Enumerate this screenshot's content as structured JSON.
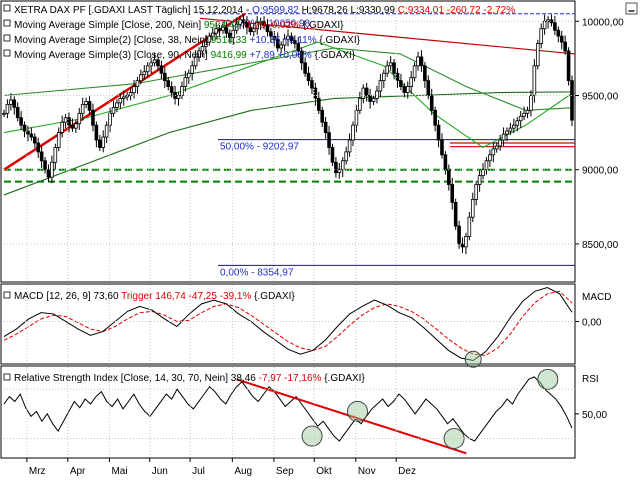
{
  "chart_data": [
    {
      "panel": "price",
      "type": "candlestick",
      "legend": [
        {
          "text_parts": [
            {
              "t": "XETRA DAX PF [.GDAXI LAST Täglich] 15.12.2014 - ",
              "c": "#000000"
            },
            {
              "t": "O:9599,82",
              "c": "#1f2fc8"
            },
            {
              "t": " H:9678,26 L:9330,99 ",
              "c": "#000000"
            },
            {
              "t": "C:9334,01 -260,72 -2,72%",
              "c": "#e00000"
            }
          ]
        },
        {
          "text_parts": [
            {
              "t": "Moving Average Simple [Close, 200, Nein] ",
              "c": "#000000"
            },
            {
              "t": "9524,47",
              "c": "#008000"
            },
            {
              "t": " -1,79 -0,02%",
              "c": "#e00000"
            },
            {
              "t": " {.GDAXI}",
              "c": "#000000"
            }
          ]
        },
        {
          "text_parts": [
            {
              "t": "Moving Average Simple(2) [Close, 38, Nein] ",
              "c": "#000000"
            },
            {
              "t": "9514,33",
              "c": "#008000"
            },
            {
              "t": " +10,36 +0,11%",
              "c": "#1f2fc8"
            },
            {
              "t": " {.GDAXI}",
              "c": "#000000"
            }
          ]
        },
        {
          "text_parts": [
            {
              "t": "Moving Average Simple(3) [Close, 90, Nein] ",
              "c": "#000000"
            },
            {
              "t": "9416,99",
              "c": "#008000"
            },
            {
              "t": " +7,89 +0,08%",
              "c": "#1f2fc8"
            },
            {
              "t": " {.GDAXI}",
              "c": "#000000"
            }
          ]
        }
      ],
      "y_ticks": [
        "10000,00",
        "9500,00",
        "9000,00",
        "8500,00"
      ],
      "y_tick_values": [
        10000,
        9500,
        9000,
        8500
      ],
      "ylim": [
        8250,
        10130
      ],
      "fib_labels": [
        {
          "text": "100,00% - 10050,98",
          "value": 10050.98
        },
        {
          "text": "50,00% - 9202,97",
          "value": 9202.97
        },
        {
          "text": "0,00% - 8354,97",
          "value": 8354.97
        }
      ],
      "support_levels": [
        9000,
        8920
      ],
      "close_series": [
        9380,
        9440,
        9470,
        9420,
        9350,
        9300,
        9260,
        9240,
        9220,
        9180,
        9120,
        9060,
        9000,
        8950,
        9050,
        9150,
        9250,
        9320,
        9350,
        9300,
        9280,
        9310,
        9380,
        9440,
        9460,
        9400,
        9300,
        9200,
        9150,
        9220,
        9300,
        9380,
        9420,
        9450,
        9480,
        9490,
        9500,
        9520,
        9560,
        9600,
        9640,
        9660,
        9700,
        9720,
        9740,
        9700,
        9650,
        9600,
        9560,
        9520,
        9480,
        9500,
        9560,
        9620,
        9650,
        9700,
        9760,
        9800,
        9830,
        9860,
        9900,
        9920,
        9950,
        9940,
        9960,
        9920,
        9890,
        9940,
        9980,
        10010,
        9990,
        9960,
        9930,
        9950,
        9990,
        10000,
        9970,
        9930,
        9900,
        9880,
        9820,
        9840,
        9880,
        9900,
        9870,
        9850,
        9800,
        9720,
        9650,
        9600,
        9550,
        9480,
        9400,
        9320,
        9250,
        9150,
        9050,
        8980,
        9000,
        9060,
        9120,
        9200,
        9300,
        9400,
        9480,
        9550,
        9500,
        9460,
        9480,
        9530,
        9600,
        9650,
        9700,
        9720,
        9650,
        9600,
        9560,
        9520,
        9560,
        9620,
        9700,
        9760,
        9700,
        9600,
        9500,
        9400,
        9300,
        9200,
        9100,
        9000,
        8900,
        8780,
        8620,
        8500,
        8480,
        8550,
        8680,
        8800,
        8900,
        8960,
        9000,
        9060,
        9100,
        9140,
        9160,
        9200,
        9240,
        9260,
        9280,
        9300,
        9330,
        9360,
        9380,
        9400,
        9500,
        9700,
        9850,
        9950,
        10000,
        10010,
        9990,
        9940,
        9900,
        9860,
        9800,
        9600,
        9334
      ],
      "ma200": {
        "x": [
          0,
          25,
          50,
          75,
          100,
          125,
          150,
          172
        ],
        "y": [
          8830,
          9040,
          9250,
          9400,
          9480,
          9500,
          9520,
          9524.47
        ]
      },
      "ma38": {
        "x": [
          0,
          25,
          50,
          75,
          95,
          115,
          130,
          145,
          158,
          172
        ],
        "y": [
          9250,
          9350,
          9500,
          9700,
          9860,
          9700,
          9380,
          9150,
          9300,
          9514.33
        ]
      },
      "ma90": {
        "x": [
          0,
          40,
          70,
          100,
          120,
          140,
          158,
          172
        ],
        "y": [
          9500,
          9580,
          9700,
          9820,
          9780,
          9560,
          9400,
          9416.99
        ]
      }
    },
    {
      "panel": "macd",
      "type": "line",
      "legend_parts": [
        {
          "t": "MACD [12, 26, 9] 73,60 ",
          "c": "#000000"
        },
        {
          "t": "Trigger 146,74",
          "c": "#e00000"
        },
        {
          "t": " -47,25 -39,1%",
          "c": "#e00000"
        },
        {
          "t": " {.GDAXI}",
          "c": "#000000"
        }
      ],
      "label": "MACD",
      "y_ticks": [
        "0,00"
      ],
      "y_tick_values": [
        0
      ],
      "ylim": [
        -330,
        290
      ],
      "macd": [
        -120,
        -60,
        20,
        70,
        60,
        0,
        -60,
        -110,
        -80,
        0,
        80,
        120,
        90,
        20,
        -40,
        60,
        140,
        170,
        140,
        60,
        0,
        -80,
        -150,
        -220,
        -260,
        -230,
        -150,
        -40,
        60,
        120,
        170,
        130,
        70,
        30,
        -50,
        -140,
        -230,
        -290,
        -310,
        -240,
        -120,
        30,
        160,
        240,
        270,
        220,
        73.6
      ],
      "trigger": [
        -150,
        -100,
        -40,
        20,
        50,
        40,
        -10,
        -60,
        -80,
        -40,
        20,
        70,
        80,
        50,
        0,
        10,
        70,
        120,
        140,
        110,
        50,
        -20,
        -90,
        -160,
        -210,
        -230,
        -200,
        -120,
        -30,
        50,
        110,
        140,
        120,
        80,
        20,
        -60,
        -140,
        -210,
        -260,
        -270,
        -210,
        -100,
        40,
        150,
        220,
        240,
        146.74
      ],
      "annotation": {
        "index": 38,
        "value": -300,
        "kind": "ellipse"
      }
    },
    {
      "panel": "rsi",
      "type": "line",
      "legend_parts": [
        {
          "t": "Relative Strength Index [Close, 14, 30, 70, Nein] 38,46 ",
          "c": "#000000"
        },
        {
          "t": "-7,97 -17,16%",
          "c": "#e00000"
        },
        {
          "t": " {.GDAXI}",
          "c": "#000000"
        }
      ],
      "label": "RSI",
      "y_ticks": [
        "50,00"
      ],
      "y_tick_values": [
        50
      ],
      "ylim": [
        15,
        88
      ],
      "reference_levels": [
        70,
        30
      ],
      "rsi": [
        58,
        64,
        60,
        66,
        55,
        48,
        52,
        44,
        50,
        42,
        36,
        44,
        52,
        60,
        55,
        62,
        58,
        64,
        68,
        60,
        56,
        62,
        54,
        60,
        66,
        58,
        52,
        48,
        54,
        60,
        66,
        62,
        70,
        64,
        58,
        54,
        60,
        66,
        72,
        68,
        62,
        58,
        66,
        72,
        76,
        70,
        64,
        60,
        66,
        72,
        68,
        62,
        56,
        60,
        64,
        58,
        52,
        46,
        40,
        44,
        38,
        32,
        28,
        34,
        40,
        46,
        42,
        48,
        54,
        58,
        62,
        56,
        60,
        66,
        62,
        56,
        50,
        56,
        62,
        58,
        54,
        48,
        42,
        46,
        40,
        34,
        30,
        28,
        34,
        40,
        46,
        52,
        56,
        62,
        58,
        66,
        72,
        78,
        80,
        76,
        70,
        66,
        62,
        56,
        48,
        38.46
      ],
      "trendline": {
        "from": [
          0.48,
          78
        ],
        "to": [
          0.99,
          18
        ]
      },
      "circles": [
        {
          "i": 0.56,
          "v": 32
        },
        {
          "i": 0.64,
          "v": 52
        },
        {
          "i": 0.81,
          "v": 30
        },
        {
          "i": 0.975,
          "v": 78
        }
      ]
    }
  ],
  "x_axis_months": [
    "Mrz",
    "Apr",
    "Mai",
    "Jun",
    "Jul",
    "Aug",
    "Sep",
    "Okt",
    "Nov",
    "Dez"
  ],
  "x_axis_month_positions": [
    0.042,
    0.106,
    0.171,
    0.234,
    0.297,
    0.363,
    0.428,
    0.491,
    0.556,
    0.619
  ],
  "top_right_icon": "minimize-icon"
}
